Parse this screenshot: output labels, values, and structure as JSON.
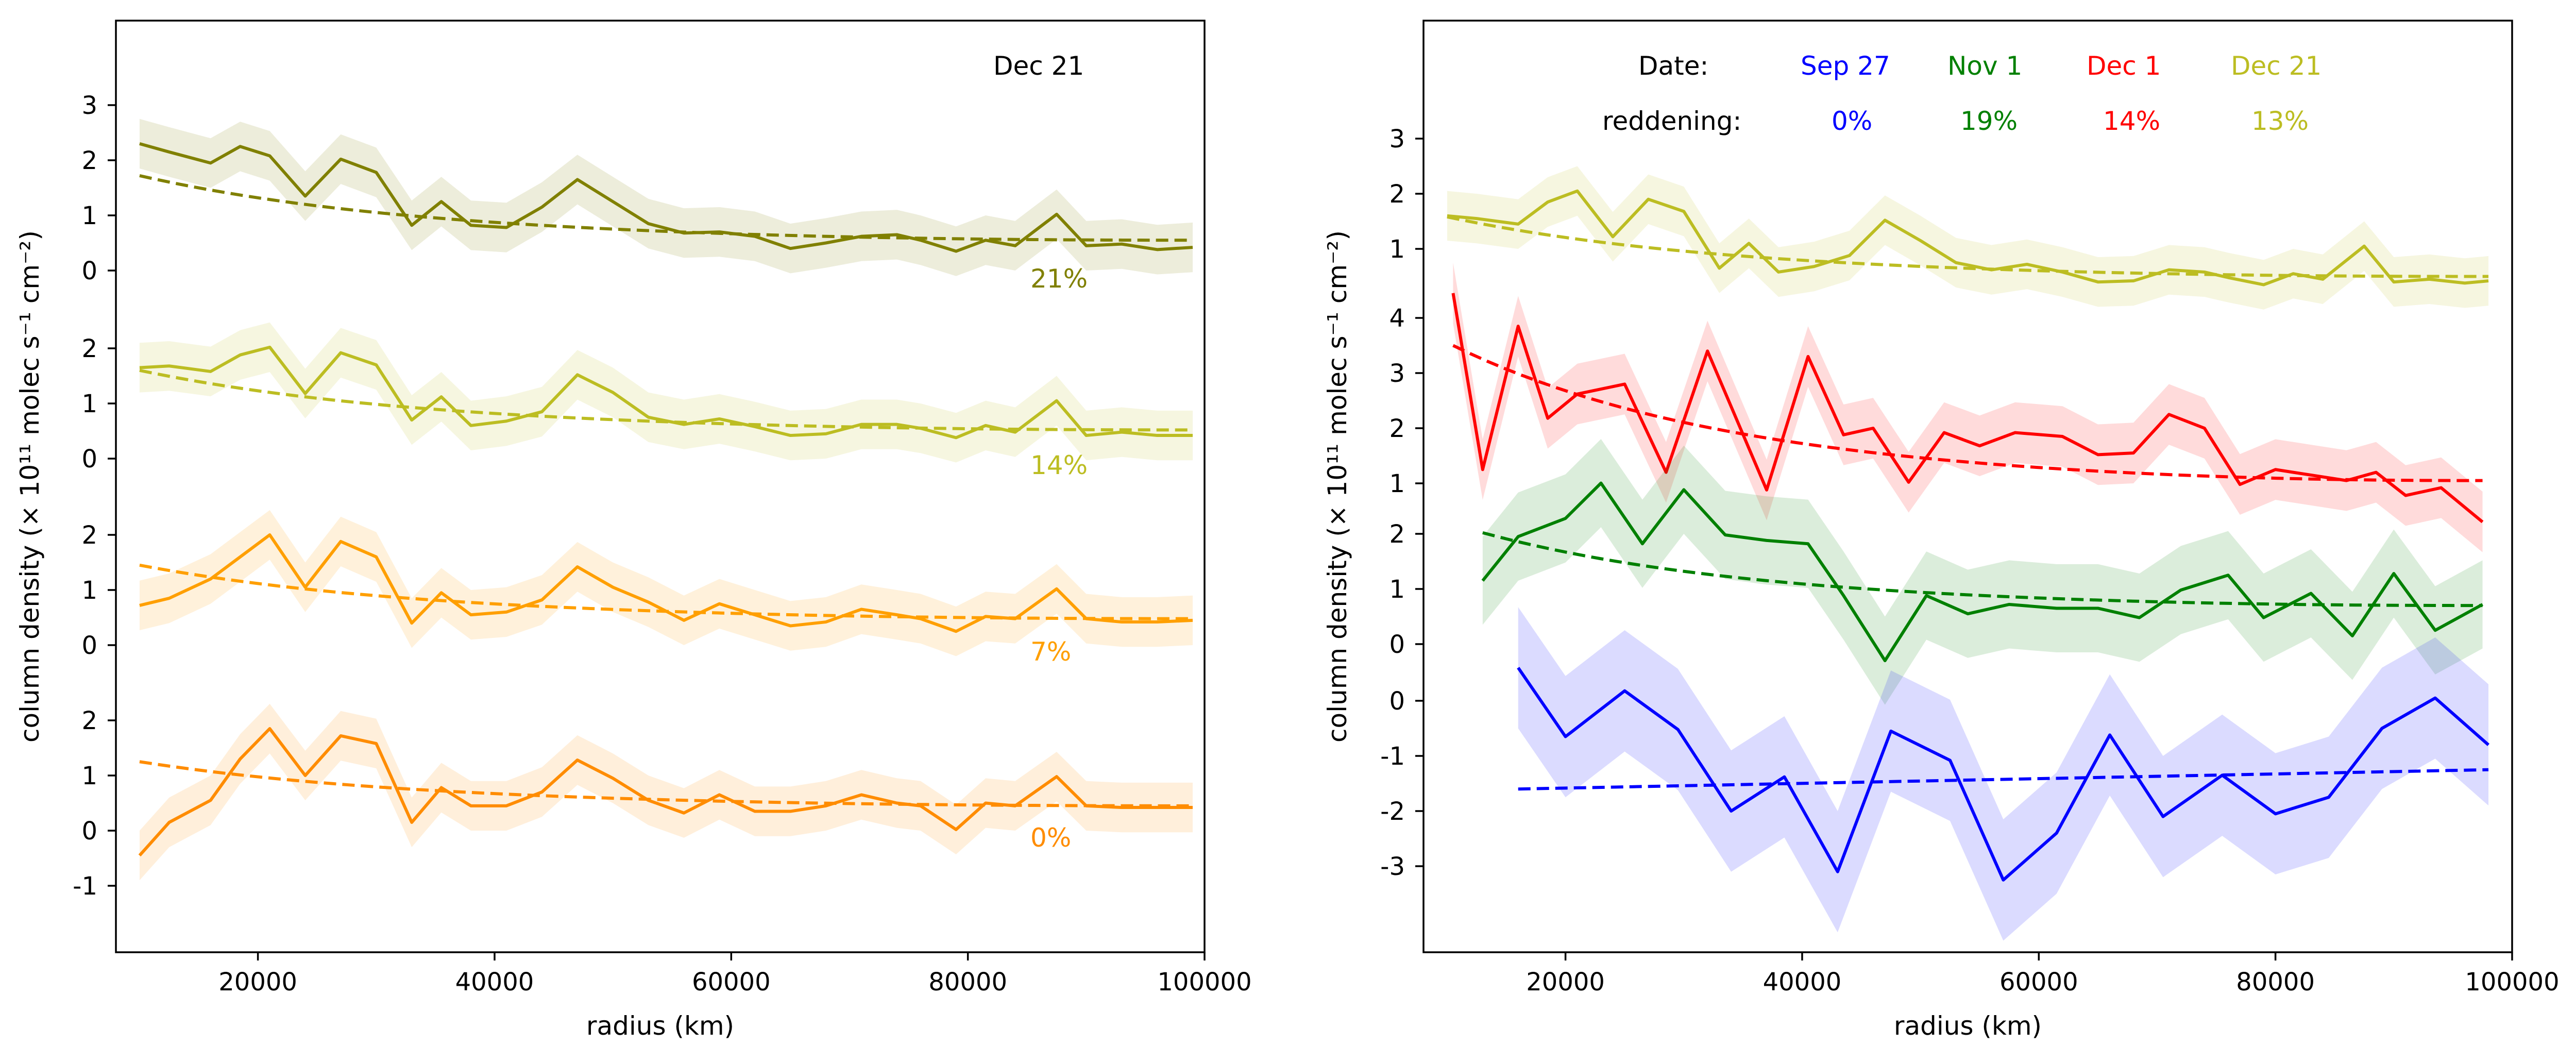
{
  "chart_data": [
    {
      "type": "line",
      "panel": "left",
      "xlabel": "radius (km)",
      "ylabel": "column density (× 10¹¹ molec s⁻¹ cm⁻²)",
      "xlim": [
        8000,
        100000
      ],
      "x_ticks": [
        20000,
        40000,
        60000,
        80000,
        100000
      ],
      "x_tick_labels": [
        "20000",
        "40000",
        "60000",
        "80000",
        "100000"
      ],
      "grid": false,
      "annotations": [
        {
          "text": "Dec 21",
          "color": "#000000"
        }
      ],
      "series": [
        {
          "label": "21%",
          "color": "#808000",
          "tick_values": [
            0,
            1,
            2,
            3
          ],
          "tick_labels": [
            "0",
            "1",
            "2",
            "3"
          ],
          "x": [
            10000,
            12500,
            16000,
            18500,
            21000,
            24000,
            27000,
            30000,
            33000,
            35500,
            38000,
            41000,
            44000,
            47000,
            50000,
            53000,
            56000,
            59000,
            62000,
            65000,
            68000,
            71000,
            74000,
            76000,
            79000,
            81500,
            84000,
            87500,
            90000,
            93000,
            96000,
            99000
          ],
          "y": [
            2.3,
            2.15,
            1.95,
            2.25,
            2.08,
            1.35,
            2.02,
            1.78,
            0.82,
            1.25,
            0.82,
            0.78,
            1.15,
            1.65,
            1.25,
            0.85,
            0.68,
            0.7,
            0.62,
            0.4,
            0.5,
            0.62,
            0.65,
            0.55,
            0.35,
            0.55,
            0.45,
            1.02,
            0.45,
            0.48,
            0.38,
            0.42
          ],
          "band": 0.45,
          "fit_x": [
            10000,
            99000
          ],
          "fit_a": 1.72,
          "fit_floor": 0.55
        },
        {
          "label": "14%",
          "color": "#bcbd22",
          "tick_values": [
            0,
            1,
            2
          ],
          "tick_labels": [
            "0",
            "1",
            "2"
          ],
          "x": [
            10000,
            12500,
            16000,
            18500,
            21000,
            24000,
            27000,
            30000,
            33000,
            35500,
            38000,
            41000,
            44000,
            47000,
            50000,
            53000,
            56000,
            59000,
            62000,
            65000,
            68000,
            71000,
            74000,
            76000,
            79000,
            81500,
            84000,
            87500,
            90000,
            93000,
            96000,
            99000
          ],
          "y": [
            1.65,
            1.68,
            1.58,
            1.88,
            2.02,
            1.18,
            1.92,
            1.7,
            0.7,
            1.12,
            0.6,
            0.68,
            0.85,
            1.52,
            1.2,
            0.75,
            0.62,
            0.72,
            0.58,
            0.42,
            0.45,
            0.62,
            0.62,
            0.55,
            0.38,
            0.6,
            0.48,
            1.05,
            0.42,
            0.48,
            0.42,
            0.42
          ],
          "band": 0.45,
          "fit_x": [
            10000,
            99000
          ],
          "fit_a": 1.6,
          "fit_floor": 0.52
        },
        {
          "label": "7%",
          "color": "#ff9f00",
          "tick_values": [
            0,
            1,
            2
          ],
          "tick_labels": [
            "0",
            "1",
            "2"
          ],
          "x": [
            10000,
            12500,
            16000,
            18500,
            21000,
            24000,
            27000,
            30000,
            33000,
            35500,
            38000,
            41000,
            44000,
            47000,
            50000,
            53000,
            56000,
            59000,
            62000,
            65000,
            68000,
            71000,
            74000,
            76000,
            79000,
            81500,
            84000,
            87500,
            90000,
            93000,
            96000,
            99000
          ],
          "y": [
            0.72,
            0.85,
            1.2,
            1.6,
            2.0,
            1.05,
            1.88,
            1.6,
            0.4,
            0.95,
            0.55,
            0.6,
            0.82,
            1.42,
            1.05,
            0.78,
            0.45,
            0.75,
            0.55,
            0.35,
            0.42,
            0.65,
            0.55,
            0.48,
            0.25,
            0.52,
            0.48,
            1.02,
            0.48,
            0.42,
            0.42,
            0.45
          ],
          "band": 0.45,
          "fit_x": [
            10000,
            99000
          ],
          "fit_a": 1.45,
          "fit_floor": 0.48
        },
        {
          "label": "0%",
          "color": "#ff8c00",
          "tick_values": [
            -1,
            0,
            1,
            2
          ],
          "tick_labels": [
            "-1",
            "0",
            "1",
            "2"
          ],
          "x": [
            10000,
            12500,
            16000,
            18500,
            21000,
            24000,
            27000,
            30000,
            33000,
            35500,
            38000,
            41000,
            44000,
            47000,
            50000,
            53000,
            56000,
            59000,
            62000,
            65000,
            68000,
            71000,
            74000,
            76000,
            79000,
            81500,
            84000,
            87500,
            90000,
            93000,
            96000,
            99000
          ],
          "y": [
            -0.45,
            0.15,
            0.55,
            1.3,
            1.85,
            1.0,
            1.72,
            1.58,
            0.15,
            0.78,
            0.45,
            0.45,
            0.7,
            1.28,
            0.95,
            0.55,
            0.32,
            0.65,
            0.35,
            0.35,
            0.45,
            0.65,
            0.5,
            0.45,
            0.02,
            0.5,
            0.45,
            0.98,
            0.45,
            0.42,
            0.42,
            0.42
          ],
          "band": 0.45,
          "fit_x": [
            10000,
            99000
          ],
          "fit_a": 1.25,
          "fit_floor": 0.45
        }
      ]
    },
    {
      "type": "line",
      "panel": "right",
      "xlabel": "radius (km)",
      "ylabel": "column density (× 10¹¹ molec s⁻¹ cm⁻²)",
      "xlim": [
        8000,
        100000
      ],
      "x_ticks": [
        20000,
        40000,
        60000,
        80000,
        100000
      ],
      "x_tick_labels": [
        "20000",
        "40000",
        "60000",
        "80000",
        "100000"
      ],
      "grid": false,
      "legend": {
        "date_label": "Date:",
        "reddening_label": "reddening:",
        "entries": [
          {
            "date": "Sep 27",
            "reddening": "0%",
            "color": "#0000ff"
          },
          {
            "date": "Nov 1",
            "reddening": "19%",
            "color": "#008000"
          },
          {
            "date": "Dec 1",
            "reddening": "14%",
            "color": "#ff0000"
          },
          {
            "date": "Dec 21",
            "reddening": "13%",
            "color": "#bcbd22"
          }
        ]
      },
      "series": [
        {
          "name": "Dec 21",
          "color": "#bcbd22",
          "tick_values": [
            1,
            2,
            3
          ],
          "tick_labels": [
            "1",
            "2",
            "3"
          ],
          "x": [
            10000,
            12500,
            16000,
            18500,
            21000,
            24000,
            27000,
            30000,
            33000,
            35500,
            38000,
            41000,
            44000,
            47000,
            50000,
            53000,
            56000,
            59000,
            62000,
            65000,
            68000,
            71000,
            74000,
            76000,
            79000,
            81500,
            84000,
            87500,
            90000,
            93000,
            96000,
            98000
          ],
          "y": [
            1.6,
            1.55,
            1.45,
            1.85,
            2.05,
            1.22,
            1.9,
            1.68,
            0.65,
            1.1,
            0.58,
            0.68,
            0.88,
            1.52,
            1.15,
            0.75,
            0.62,
            0.72,
            0.58,
            0.4,
            0.42,
            0.62,
            0.58,
            0.48,
            0.35,
            0.55,
            0.45,
            1.05,
            0.4,
            0.45,
            0.38,
            0.42
          ],
          "band": 0.45,
          "fit_x": [
            10000,
            98000
          ],
          "fit_a": 1.58,
          "fit_floor": 0.5
        },
        {
          "name": "Dec 1",
          "color": "#ff0000",
          "tick_values": [
            1,
            2,
            3,
            4
          ],
          "tick_labels": [
            "1",
            "2",
            "3",
            "4"
          ],
          "x": [
            10500,
            13000,
            16000,
            18500,
            21000,
            25000,
            28500,
            32000,
            37000,
            40500,
            43500,
            46000,
            49000,
            52000,
            55000,
            58000,
            62000,
            65000,
            68000,
            71000,
            74000,
            77000,
            80000,
            83000,
            86000,
            88500,
            91000,
            94000,
            97500
          ],
          "y": [
            4.45,
            1.25,
            3.85,
            2.18,
            2.62,
            2.8,
            1.2,
            3.4,
            0.88,
            3.3,
            1.88,
            2.0,
            1.02,
            1.92,
            1.68,
            1.92,
            1.85,
            1.52,
            1.55,
            2.25,
            2.0,
            0.98,
            1.25,
            1.15,
            1.05,
            1.2,
            0.78,
            0.92,
            0.3
          ],
          "band": 0.55,
          "fit_x": [
            10500,
            97500
          ],
          "fit_a": 3.5,
          "fit_floor": 1.05
        },
        {
          "name": "Nov 1",
          "color": "#008000",
          "tick_values": [
            0,
            1,
            2
          ],
          "tick_labels": [
            "0",
            "1",
            "2"
          ],
          "x": [
            13000,
            16000,
            20000,
            23000,
            26500,
            30000,
            33500,
            37000,
            40500,
            43500,
            47000,
            50500,
            54000,
            57500,
            61500,
            65000,
            68500,
            72000,
            76000,
            79000,
            83000,
            86500,
            90000,
            93500,
            97500
          ],
          "y": [
            1.15,
            1.95,
            2.28,
            2.92,
            1.82,
            2.8,
            1.98,
            1.88,
            1.82,
            0.88,
            -0.3,
            0.88,
            0.55,
            0.72,
            0.65,
            0.65,
            0.48,
            0.98,
            1.25,
            0.48,
            0.92,
            0.15,
            1.28,
            0.25,
            0.72
          ],
          "band": 0.8,
          "fit_x": [
            13000,
            97500
          ],
          "fit_a": 2.02,
          "fit_floor": 0.7
        },
        {
          "name": "Sep 27",
          "color": "#0000ff",
          "tick_values": [
            -3,
            -2,
            -1,
            0
          ],
          "tick_labels": [
            "-3",
            "-2",
            "-1",
            "0"
          ],
          "x": [
            16000,
            20000,
            25000,
            29500,
            34000,
            38500,
            43000,
            47500,
            52500,
            57000,
            61500,
            66000,
            70500,
            75500,
            80000,
            84500,
            89000,
            93500,
            98000
          ],
          "y": [
            0.6,
            -0.65,
            0.18,
            -0.52,
            -2.0,
            -1.38,
            -3.1,
            -0.55,
            -1.08,
            -3.25,
            -2.4,
            -0.62,
            -2.1,
            -1.35,
            -2.05,
            -1.75,
            -0.5,
            0.05,
            -0.8
          ],
          "band": 1.1,
          "fit_x": [
            16000,
            98000
          ],
          "fit_a": -1.6,
          "fit_b": -1.25
        }
      ]
    }
  ]
}
